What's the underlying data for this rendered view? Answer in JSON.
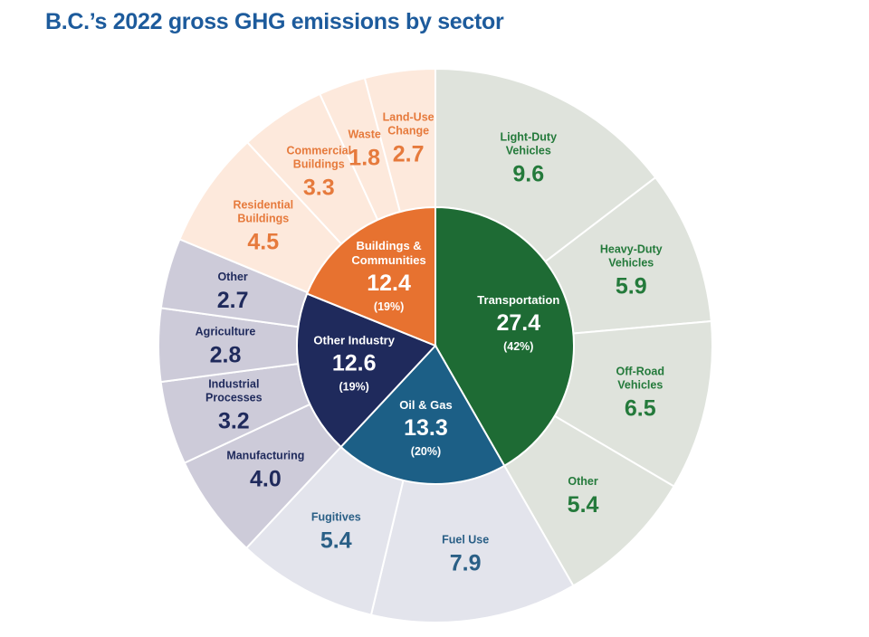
{
  "chart_data": {
    "type": "pie",
    "title": "B.C.’s 2022 gross GHG emissions by sector",
    "sectors": [
      {
        "name": "Transportation",
        "value": 27.4,
        "percent": "(42%)",
        "color": "#1e6b34",
        "outer_color": "#dfe3dc",
        "text_color": "#247a3b",
        "subsectors": [
          {
            "name": "Light-Duty Vehicles",
            "value": 9.6
          },
          {
            "name": "Heavy-Duty Vehicles",
            "value": 5.9
          },
          {
            "name": "Off-Road Vehicles",
            "value": 6.5
          },
          {
            "name": "Other",
            "value": 5.4
          }
        ]
      },
      {
        "name": "Oil & Gas",
        "value": 13.3,
        "percent": "(20%)",
        "color": "#1c5f86",
        "outer_color": "#e3e4ec",
        "text_color": "#2a5f86",
        "subsectors": [
          {
            "name": "Fuel Use",
            "value": 7.9
          },
          {
            "name": "Fugitives",
            "value": 5.4
          }
        ]
      },
      {
        "name": "Other Industry",
        "value": 12.6,
        "percent": "(19%)",
        "color": "#1f2a5c",
        "outer_color": "#cdcbd9",
        "text_color": "#1f2a5c",
        "subsectors": [
          {
            "name": "Manufacturing",
            "value": 4.0
          },
          {
            "name": "Industrial Processes",
            "value": 3.2
          },
          {
            "name": "Agriculture",
            "value": 2.8
          },
          {
            "name": "Other",
            "value": 2.7
          }
        ]
      },
      {
        "name": "Buildings & Communities",
        "value": 12.4,
        "percent": "(19%)",
        "color": "#e77230",
        "outer_color": "#fde9dc",
        "text_color": "#e67a3c",
        "subsectors": [
          {
            "name": "Residential Buildings",
            "value": 4.5
          },
          {
            "name": "Commercial Buildings",
            "value": 3.3
          },
          {
            "name": "Waste",
            "value": 1.8
          },
          {
            "name": "Land-Use Change",
            "value": 2.7
          }
        ]
      }
    ]
  }
}
